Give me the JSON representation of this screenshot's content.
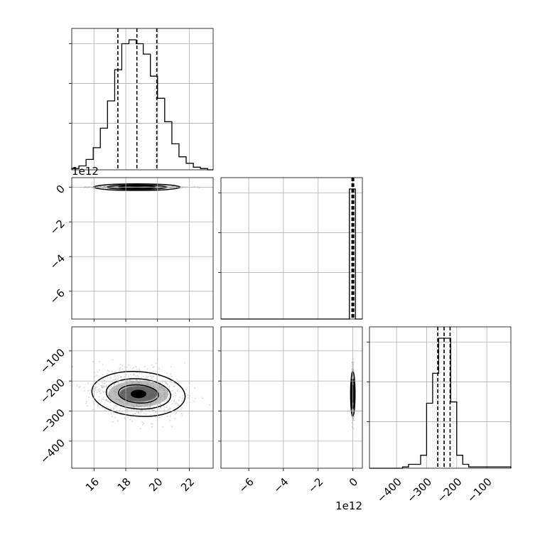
{
  "chart_data": {
    "type": "corner",
    "grid": true,
    "quantile_lines": "dashed",
    "variables": [
      {
        "id": "p0",
        "range": [
          14.6,
          23.5
        ],
        "ticks": [
          16,
          18,
          20,
          22
        ],
        "tick_labels": [
          "16",
          "18",
          "20",
          "22"
        ],
        "quantiles": [
          17.5,
          18.7,
          19.95
        ]
      },
      {
        "id": "p1",
        "range": [
          -7.6,
          0.55
        ],
        "ticks": [
          -6,
          -4,
          -2,
          0
        ],
        "tick_labels": [
          "−6",
          "−4",
          "−2",
          "0"
        ],
        "offset_text": "1e12",
        "quantiles": [
          -0.05,
          0.0,
          0.05
        ]
      },
      {
        "id": "p2",
        "range": [
          -490,
          -20
        ],
        "ticks": [
          -400,
          -300,
          -200,
          -100
        ],
        "tick_labels": [
          "−400",
          "−300",
          "−200",
          "−100"
        ],
        "quantiles": [
          -263,
          -242,
          -222
        ]
      }
    ],
    "histograms": [
      {
        "var": "p0",
        "bin_edges": [
          14.6,
          15.05,
          15.5,
          15.95,
          16.4,
          16.85,
          17.3,
          17.75,
          18.2,
          18.65,
          19.1,
          19.55,
          20.0,
          20.45,
          20.9,
          21.35,
          21.8,
          22.25,
          22.7,
          23.15,
          23.5
        ],
        "counts": [
          0.01,
          0.03,
          0.08,
          0.17,
          0.32,
          0.53,
          0.77,
          0.97,
          1.0,
          0.97,
          0.89,
          0.72,
          0.55,
          0.37,
          0.2,
          0.1,
          0.05,
          0.02,
          0.01,
          0.0
        ]
      },
      {
        "var": "p1",
        "bin_edges": [
          -7.6,
          -0.2,
          0.15,
          0.55
        ],
        "counts": [
          0.0,
          1.0,
          0.0
        ]
      },
      {
        "var": "p2",
        "bin_edges": [
          -490,
          -380,
          -360,
          -340,
          -320,
          -300,
          -280,
          -260,
          -240,
          -220,
          -200,
          -180,
          -160,
          -20
        ],
        "counts": [
          0.0,
          0.01,
          0.03,
          0.03,
          0.1,
          0.5,
          0.73,
          1.0,
          1.0,
          0.51,
          0.1,
          0.03,
          0.01
        ]
      }
    ],
    "pairs": [
      {
        "x": "p0",
        "y": "p1",
        "center": [
          18.7,
          0.0
        ],
        "spread": [
          1.3,
          0.02
        ]
      },
      {
        "x": "p0",
        "y": "p2",
        "center": [
          18.8,
          -243
        ],
        "spread": [
          1.4,
          40
        ]
      },
      {
        "x": "p1",
        "y": "p2",
        "center": [
          0.0,
          -243
        ],
        "spread": [
          0.03,
          40
        ]
      }
    ]
  }
}
